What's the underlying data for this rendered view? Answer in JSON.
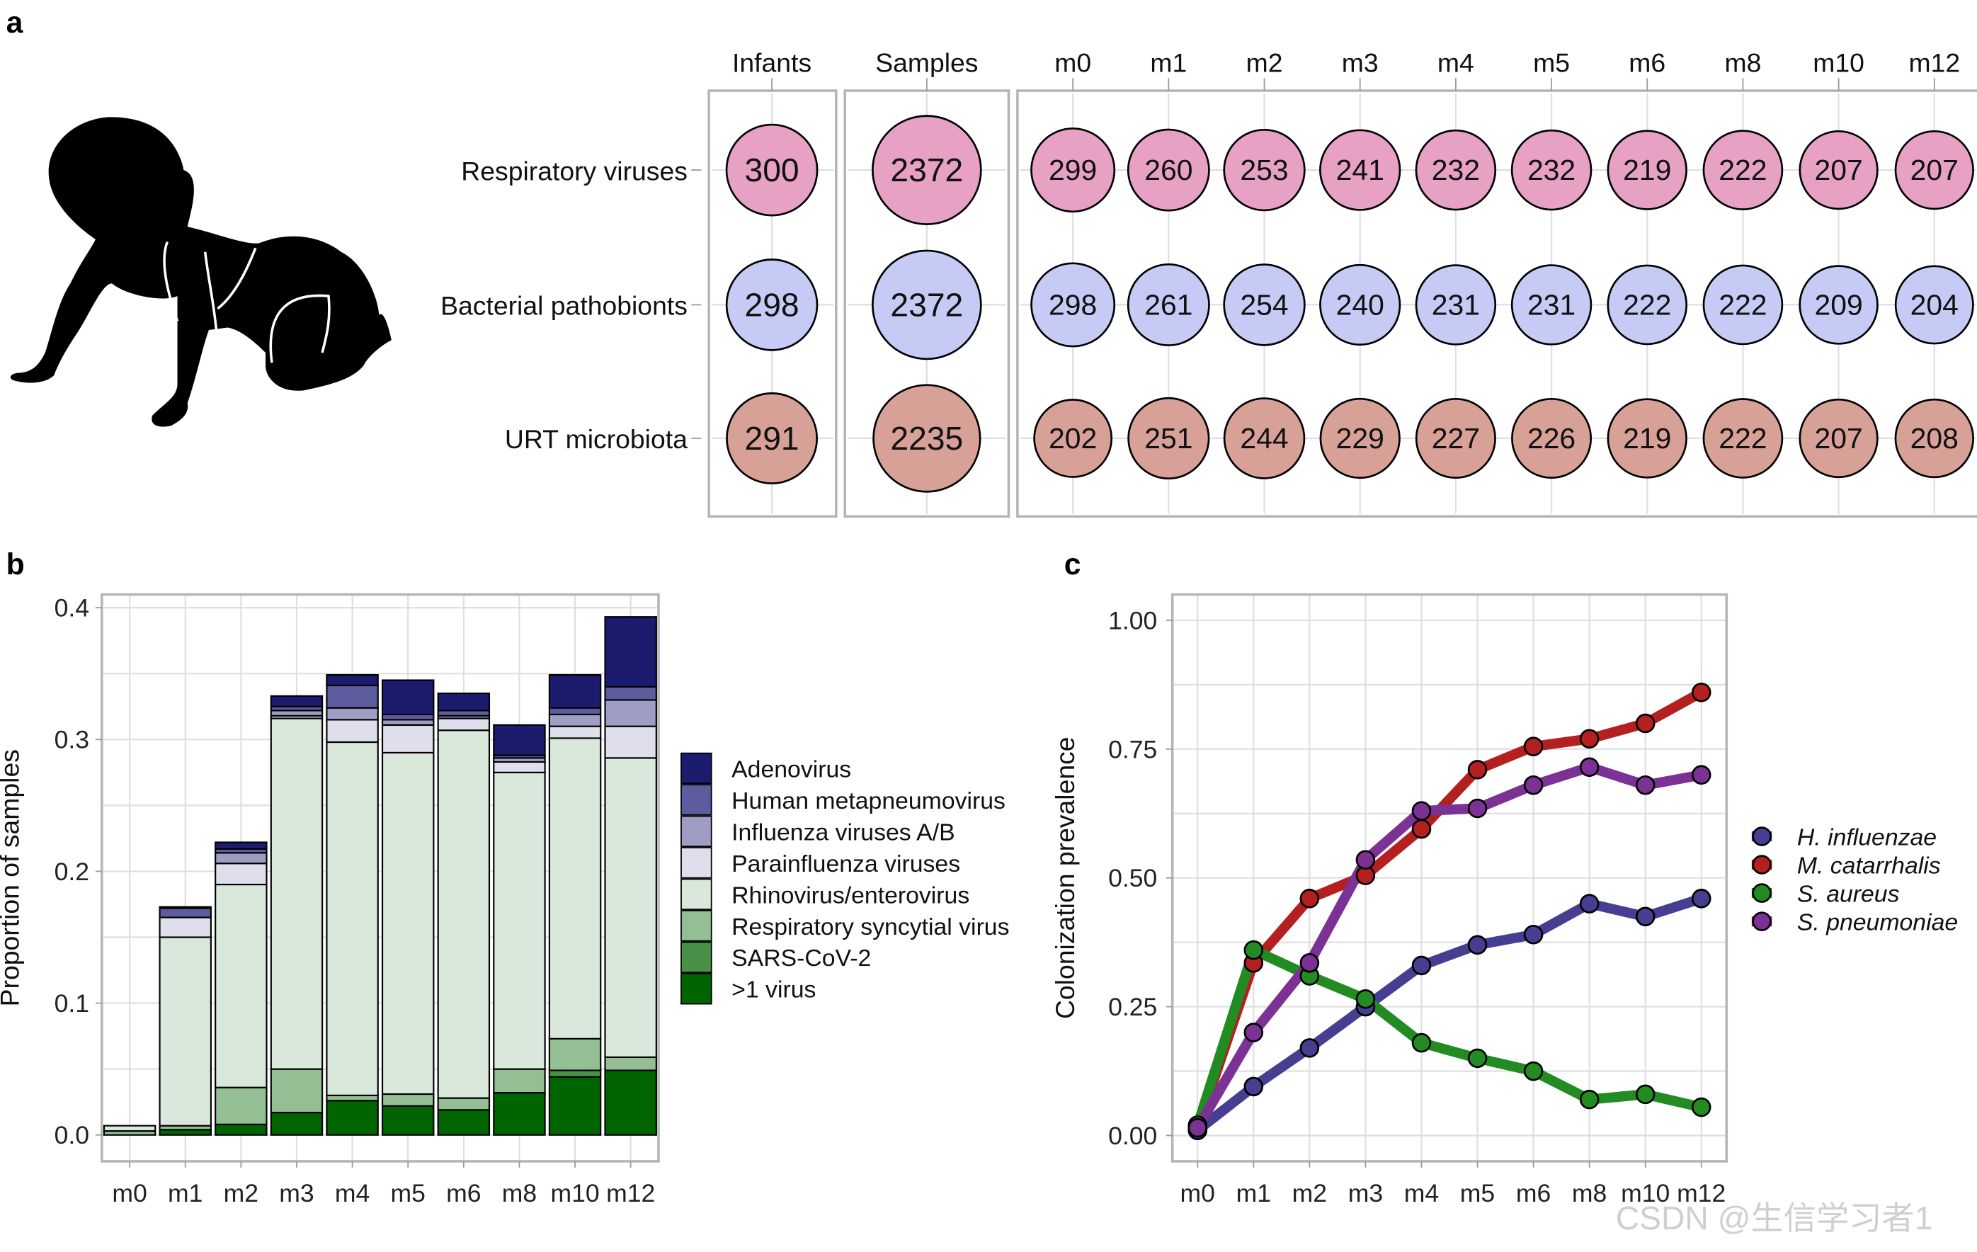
{
  "panel_labels": {
    "a": "a",
    "b": "b",
    "c": "c"
  },
  "watermark": "CSDN @生信学习者1",
  "chart_data": [
    {
      "type": "table",
      "panel": "a",
      "description": "Sample counts bubble table",
      "group_headers": [
        "Infants",
        "Samples"
      ],
      "timepoints": [
        "m0",
        "m1",
        "m2",
        "m3",
        "m4",
        "m5",
        "m6",
        "m8",
        "m10",
        "m12"
      ],
      "rows": [
        {
          "label": "Respiratory viruses",
          "color": "#e6a1c4",
          "infants": 300,
          "samples": 2372,
          "by_timepoint": [
            299,
            260,
            253,
            241,
            232,
            232,
            219,
            222,
            207,
            207
          ]
        },
        {
          "label": "Bacterial pathobionts",
          "color": "#c5cbf5",
          "infants": 298,
          "samples": 2372,
          "by_timepoint": [
            298,
            261,
            254,
            240,
            231,
            231,
            222,
            222,
            209,
            204
          ]
        },
        {
          "label": "URT microbiota",
          "color": "#d8a198",
          "infants": 291,
          "samples": 2235,
          "by_timepoint": [
            202,
            251,
            244,
            229,
            227,
            226,
            219,
            222,
            207,
            208
          ]
        }
      ]
    },
    {
      "type": "bar",
      "stacked": true,
      "panel": "b",
      "title": "",
      "xlabel": "",
      "ylabel": "Proportion of samples",
      "ylim": [
        -0.02,
        0.41
      ],
      "yticks": [
        "0.0",
        "0.1",
        "0.2",
        "0.3",
        "0.4"
      ],
      "grid": true,
      "legend_position": "right",
      "categories": [
        "m0",
        "m1",
        "m2",
        "m3",
        "m4",
        "m5",
        "m6",
        "m8",
        "m10",
        "m12"
      ],
      "series": [
        {
          "name": ">1 virus",
          "color": "#006400",
          "values": [
            0.0,
            0.004,
            0.008,
            0.017,
            0.026,
            0.022,
            0.019,
            0.032,
            0.044,
            0.049
          ]
        },
        {
          "name": "SARS-CoV-2",
          "color": "#4a9148",
          "values": [
            0.0,
            0.0,
            0.0,
            0.0,
            0.0,
            0.0,
            0.0,
            0.0,
            0.005,
            0.0
          ]
        },
        {
          "name": "Respiratory syncytial virus",
          "color": "#94bf94",
          "values": [
            0.003,
            0.003,
            0.028,
            0.033,
            0.004,
            0.009,
            0.009,
            0.018,
            0.024,
            0.01
          ]
        },
        {
          "name": "Rhinovirus/enterovirus",
          "color": "#dae8dc",
          "values": [
            0.004,
            0.143,
            0.154,
            0.266,
            0.268,
            0.259,
            0.279,
            0.225,
            0.228,
            0.227
          ]
        },
        {
          "name": "Parainfluenza viruses",
          "color": "#dfdfec",
          "values": [
            0.0,
            0.015,
            0.016,
            0.002,
            0.017,
            0.021,
            0.009,
            0.008,
            0.009,
            0.024
          ]
        },
        {
          "name": "Influenza viruses A/B",
          "color": "#9e9ec4",
          "values": [
            0.0,
            0.0,
            0.008,
            0.004,
            0.009,
            0.004,
            0.002,
            0.003,
            0.009,
            0.02
          ]
        },
        {
          "name": "Human metapneumovirus",
          "color": "#5c5c9e",
          "values": [
            0.0,
            0.007,
            0.003,
            0.003,
            0.017,
            0.004,
            0.004,
            0.002,
            0.005,
            0.01
          ]
        },
        {
          "name": "Adenovirus",
          "color": "#1c1c6e",
          "values": [
            0.0,
            0.001,
            0.005,
            0.008,
            0.008,
            0.026,
            0.013,
            0.023,
            0.025,
            0.053
          ]
        }
      ],
      "legend_order": [
        "Adenovirus",
        "Human metapneumovirus",
        "Influenza viruses A/B",
        "Parainfluenza viruses",
        "Rhinovirus/enterovirus",
        "Respiratory syncytial virus",
        "SARS-CoV-2",
        ">1 virus"
      ]
    },
    {
      "type": "line",
      "panel": "c",
      "title": "",
      "xlabel": "",
      "ylabel": "Colonization prevalence",
      "ylim": [
        -0.05,
        1.05
      ],
      "yticks": [
        "0.00",
        "0.25",
        "0.50",
        "0.75",
        "1.00"
      ],
      "grid": true,
      "legend_position": "right",
      "x": [
        "m0",
        "m1",
        "m2",
        "m3",
        "m4",
        "m5",
        "m6",
        "m8",
        "m10",
        "m12"
      ],
      "series": [
        {
          "name": "H. influenzae",
          "color": "#463f91",
          "values": [
            0.01,
            0.095,
            0.17,
            0.25,
            0.33,
            0.37,
            0.39,
            0.45,
            0.425,
            0.46
          ]
        },
        {
          "name": "M. catarrhalis",
          "color": "#b3201f",
          "values": [
            0.015,
            0.335,
            0.46,
            0.505,
            0.595,
            0.71,
            0.755,
            0.77,
            0.8,
            0.86
          ]
        },
        {
          "name": "S. aureus",
          "color": "#228b22",
          "values": [
            0.02,
            0.36,
            0.31,
            0.265,
            0.18,
            0.15,
            0.125,
            0.07,
            0.08,
            0.055
          ]
        },
        {
          "name": "S. pneumoniae",
          "color": "#7b3294",
          "values": [
            0.015,
            0.2,
            0.335,
            0.535,
            0.63,
            0.635,
            0.68,
            0.715,
            0.68,
            0.7
          ]
        }
      ]
    }
  ]
}
